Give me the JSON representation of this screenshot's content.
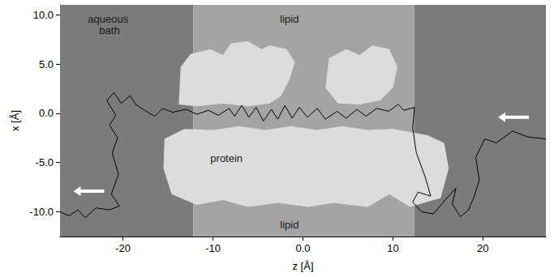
{
  "chart_data": {
    "type": "line",
    "x_label": "z [Å]",
    "y_label": "x [Å]",
    "xlim": [
      -27,
      27
    ],
    "ylim": [
      -12.5,
      11
    ],
    "xticks": [
      -20,
      -10,
      {
        "value": 0,
        "label": "0.0"
      },
      10,
      20
    ],
    "yticks": [
      {
        "value": -10,
        "label": "-10.0"
      },
      {
        "value": -5,
        "label": "-5.0"
      },
      {
        "value": 0,
        "label": "0.0"
      },
      {
        "value": 5,
        "label": "5.0"
      },
      {
        "value": 10,
        "label": "10.0"
      }
    ],
    "grid": false,
    "color": "#000000",
    "regions": [
      {
        "z": [
          -27,
          -12.2
        ],
        "color": "#7b7b7b"
      },
      {
        "z": [
          -12.2,
          12.4
        ],
        "color": "#a4a4a4"
      },
      {
        "z": [
          12.4,
          27
        ],
        "color": "#7b7b7b"
      }
    ],
    "proteins": {
      "color": "#dcdcdc",
      "shapes": [
        [
          [
            -13.8,
            0.9
          ],
          [
            -13.6,
            4.7
          ],
          [
            -12.5,
            6.0
          ],
          [
            -10.3,
            6.5
          ],
          [
            -8.9,
            5.9
          ],
          [
            -8.0,
            7.1
          ],
          [
            -6.1,
            7.3
          ],
          [
            -4.6,
            6.5
          ],
          [
            -3.7,
            6.9
          ],
          [
            -1.8,
            6.5
          ],
          [
            -0.9,
            5.2
          ],
          [
            -1.5,
            3.4
          ],
          [
            -2.5,
            1.7
          ],
          [
            -3.7,
            1.0
          ],
          [
            -6.1,
            0.7
          ],
          [
            -8.9,
            1.0
          ],
          [
            -11.8,
            0.7
          ]
        ],
        [
          [
            2.5,
            2.6
          ],
          [
            2.9,
            5.6
          ],
          [
            4.8,
            6.5
          ],
          [
            6.3,
            5.9
          ],
          [
            7.7,
            6.9
          ],
          [
            9.6,
            6.5
          ],
          [
            10.5,
            4.7
          ],
          [
            10.0,
            2.6
          ],
          [
            8.6,
            1.3
          ],
          [
            6.3,
            0.9
          ],
          [
            3.9,
            1.0
          ]
        ],
        [
          [
            -15.4,
            -2.6
          ],
          [
            -13.2,
            -1.6
          ],
          [
            -9.9,
            -1.7
          ],
          [
            -7.1,
            -1.3
          ],
          [
            -4.2,
            -1.7
          ],
          [
            -1.3,
            -1.3
          ],
          [
            1.5,
            -1.7
          ],
          [
            4.4,
            -1.3
          ],
          [
            7.2,
            -1.7
          ],
          [
            10.0,
            -1.6
          ],
          [
            13.8,
            -2.2
          ],
          [
            15.7,
            -3.0
          ],
          [
            16.2,
            -5.6
          ],
          [
            15.3,
            -8.6
          ],
          [
            11.9,
            -9.5
          ],
          [
            9.6,
            -8.2
          ],
          [
            7.2,
            -9.5
          ],
          [
            3.4,
            -9.1
          ],
          [
            0.6,
            -9.5
          ],
          [
            -2.7,
            -9.1
          ],
          [
            -6.1,
            -9.5
          ],
          [
            -8.9,
            -8.8
          ],
          [
            -11.8,
            -9.3
          ],
          [
            -14.6,
            -8.2
          ],
          [
            -15.5,
            -5.6
          ]
        ]
      ]
    },
    "annotations": [
      {
        "text": "aqueous bath",
        "z": -21.5,
        "x": 9.0
      },
      {
        "text": "lipid",
        "z": -1.5,
        "x": 9.6
      },
      {
        "text": "protein",
        "z": -8.5,
        "x": -4.6
      },
      {
        "text": "lipid",
        "z": -1.5,
        "x": -11.3
      }
    ],
    "arrows": [
      {
        "z": -23.8,
        "x": -7.9,
        "direction": "left"
      },
      {
        "z": 23.4,
        "x": -0.4,
        "direction": "left"
      }
    ],
    "x": [
      27,
      25,
      23.3,
      21.5,
      20.2,
      19.2,
      19.6,
      19.0,
      18.4,
      17.5,
      16.6,
      17.0,
      15.8,
      14.5,
      13.2,
      12.2,
      12.8,
      14.2,
      13.6,
      12.6,
      12.2,
      12.4,
      11.2,
      10.6,
      9.5,
      8.2,
      7.0,
      6.0,
      4.8,
      3.8,
      2.5,
      1.6,
      0.5,
      -0.4,
      -1.2,
      -2.0,
      -2.8,
      -3.5,
      -4.4,
      -5.2,
      -6.0,
      -6.8,
      -7.6,
      -8.2,
      -9.4,
      -10.5,
      -11.8,
      -13.0,
      -14.5,
      -15.6,
      -16.5,
      -17.6,
      -18.6,
      -19.2,
      -20.2,
      -21.0,
      -21.8,
      -20.8,
      -21.5,
      -20.6,
      -21.2,
      -20.5,
      -21.3,
      -20.4,
      -21.5,
      -23.0,
      -24.2,
      -25.0,
      -26.0,
      -27.0
    ],
    "values": [
      -2.6,
      -2.4,
      -1.8,
      -3.0,
      -2.6,
      -4.5,
      -6.8,
      -8.5,
      -9.8,
      -10.5,
      -9.2,
      -7.6,
      -8.8,
      -10.2,
      -10.0,
      -9.0,
      -8.0,
      -8.4,
      -6.5,
      -4.0,
      -1.5,
      0.6,
      0.3,
      0.9,
      0.2,
      0.5,
      -0.3,
      0.4,
      -0.5,
      0.2,
      -0.6,
      0.5,
      -0.4,
      0.6,
      -0.5,
      0.8,
      -0.6,
      0.4,
      -0.8,
      0.6,
      -0.4,
      0.8,
      -0.3,
      0.5,
      -0.2,
      0.3,
      -0.1,
      0.4,
      0.1,
      0.5,
      -0.3,
      0.3,
      0.9,
      1.8,
      1.0,
      2.1,
      1.3,
      -0.2,
      -1.2,
      -2.5,
      -4.0,
      -6.2,
      -8.2,
      -9.4,
      -9.8,
      -9.6,
      -10.6,
      -9.8,
      -10.4,
      -10.0
    ]
  }
}
